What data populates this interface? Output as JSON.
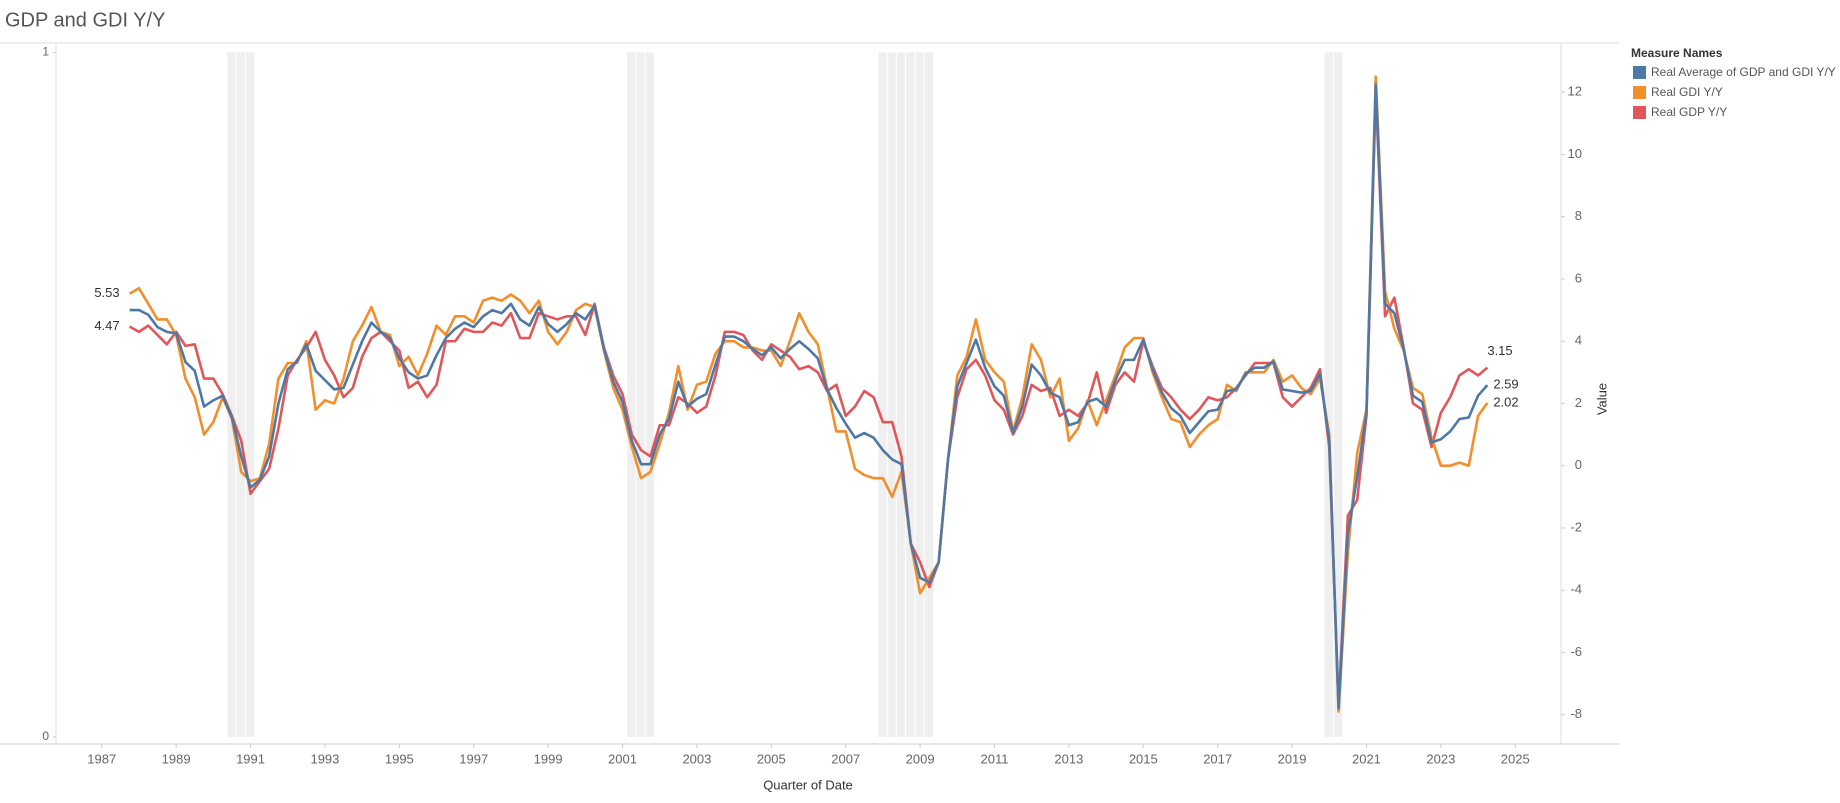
{
  "chart_data": {
    "type": "line",
    "title": "GDP and GDI Y/Y",
    "xlabel": "Quarter of Date",
    "y2label": "Value",
    "legend_title": "Measure Names",
    "legend": "right",
    "grid": false,
    "xlim": [
      1985.77,
      2026.23
    ],
    "xticks": [
      1987,
      1989,
      1991,
      1993,
      1995,
      1997,
      1999,
      2001,
      2003,
      2005,
      2007,
      2009,
      2011,
      2013,
      2015,
      2017,
      2019,
      2021,
      2023,
      2025
    ],
    "ylim": [
      -0.0103,
      1.0137
    ],
    "yticks": [
      0,
      1
    ],
    "y2lim": [
      -8.94,
      13.58
    ],
    "y2ticks": [
      -8,
      -6,
      -4,
      -2,
      0,
      2,
      4,
      6,
      8,
      10,
      12
    ],
    "recessions": {
      "color": "#efefef",
      "x": [
        1990.5,
        1990.75,
        1991.0,
        2001.25,
        2001.5,
        2001.75,
        2008.0,
        2008.25,
        2008.5,
        2008.75,
        2009.0,
        2009.25,
        2020.0,
        2020.25
      ],
      "values": [
        1,
        1,
        1,
        1,
        1,
        1,
        1,
        1,
        1,
        1,
        1,
        1,
        1,
        1
      ]
    },
    "x": [
      1987.75,
      1988,
      1988.25,
      1988.5,
      1988.75,
      1989,
      1989.25,
      1989.5,
      1989.75,
      1990,
      1990.25,
      1990.5,
      1990.75,
      1991,
      1991.25,
      1991.5,
      1991.75,
      1992,
      1992.25,
      1992.5,
      1992.75,
      1993,
      1993.25,
      1993.5,
      1993.75,
      1994,
      1994.25,
      1994.5,
      1994.75,
      1995,
      1995.25,
      1995.5,
      1995.75,
      1996,
      1996.25,
      1996.5,
      1996.75,
      1997,
      1997.25,
      1997.5,
      1997.75,
      1998,
      1998.25,
      1998.5,
      1998.75,
      1999,
      1999.25,
      1999.5,
      1999.75,
      2000,
      2000.25,
      2000.5,
      2000.75,
      2001,
      2001.25,
      2001.5,
      2001.75,
      2002,
      2002.25,
      2002.5,
      2002.75,
      2003,
      2003.25,
      2003.5,
      2003.75,
      2004,
      2004.25,
      2004.5,
      2004.75,
      2005,
      2005.25,
      2005.5,
      2005.75,
      2006,
      2006.25,
      2006.5,
      2006.75,
      2007,
      2007.25,
      2007.5,
      2007.75,
      2008,
      2008.25,
      2008.5,
      2008.75,
      2009,
      2009.25,
      2009.5,
      2009.75,
      2010,
      2010.25,
      2010.5,
      2010.75,
      2011,
      2011.25,
      2011.5,
      2011.75,
      2012,
      2012.25,
      2012.5,
      2012.75,
      2013,
      2013.25,
      2013.5,
      2013.75,
      2014,
      2014.25,
      2014.5,
      2014.75,
      2015,
      2015.25,
      2015.5,
      2015.75,
      2016,
      2016.25,
      2016.5,
      2016.75,
      2017,
      2017.25,
      2017.5,
      2017.75,
      2018,
      2018.25,
      2018.5,
      2018.75,
      2019,
      2019.25,
      2019.5,
      2019.75,
      2020,
      2020.25,
      2020.5,
      2020.75,
      2021,
      2021.25,
      2021.5,
      2021.75,
      2022,
      2022.25,
      2022.5,
      2022.75,
      2023,
      2023.25,
      2023.5,
      2023.75,
      2024,
      2024.25
    ],
    "series": [
      {
        "name": "Real Average of GDP and GDI Y/Y",
        "color": "#4e79a7",
        "axis": "y2",
        "values": [
          5.0,
          5.0,
          4.85,
          4.45,
          4.3,
          4.25,
          3.33,
          3.05,
          1.9,
          2.1,
          2.25,
          1.55,
          0.3,
          -0.7,
          -0.45,
          0.3,
          2.0,
          3.1,
          3.35,
          3.9,
          3.05,
          2.75,
          2.45,
          2.5,
          3.25,
          4.0,
          4.6,
          4.3,
          4.1,
          3.45,
          3.0,
          2.8,
          2.9,
          3.55,
          4.1,
          4.4,
          4.6,
          4.45,
          4.8,
          5.0,
          4.9,
          5.2,
          4.7,
          4.5,
          5.1,
          4.55,
          4.3,
          4.55,
          4.9,
          4.7,
          5.15,
          3.75,
          2.7,
          2.05,
          0.8,
          0.05,
          0.05,
          1.0,
          1.5,
          2.7,
          1.9,
          2.15,
          2.3,
          3.25,
          4.15,
          4.15,
          4.0,
          3.75,
          3.55,
          3.8,
          3.45,
          3.75,
          4.0,
          3.75,
          3.45,
          2.45,
          1.85,
          1.35,
          0.9,
          1.05,
          0.9,
          0.5,
          0.2,
          0.05,
          -2.5,
          -3.6,
          -3.75,
          -3.1,
          0.2,
          2.55,
          3.3,
          4.05,
          3.15,
          2.55,
          2.25,
          1.05,
          1.9,
          3.25,
          2.9,
          2.35,
          2.2,
          1.3,
          1.4,
          2.05,
          2.15,
          1.9,
          2.75,
          3.4,
          3.4,
          4.05,
          3.1,
          2.35,
          1.85,
          1.6,
          1.05,
          1.4,
          1.75,
          1.8,
          2.4,
          2.45,
          2.95,
          3.15,
          3.15,
          3.35,
          2.45,
          2.4,
          2.35,
          2.4,
          2.95,
          0.8,
          -7.8,
          -2.2,
          -0.35,
          1.7,
          12.25,
          5.2,
          4.9,
          3.75,
          2.25,
          2.05,
          0.75,
          0.85,
          1.1,
          1.5,
          1.55,
          2.25,
          2.59
        ]
      },
      {
        "name": "Real GDI Y/Y",
        "color": "#f28e2b",
        "axis": "y2",
        "values": [
          5.53,
          5.7,
          5.2,
          4.7,
          4.7,
          4.2,
          2.8,
          2.2,
          1.0,
          1.4,
          2.2,
          1.5,
          -0.2,
          -0.5,
          -0.4,
          0.7,
          2.8,
          3.3,
          3.3,
          4.0,
          1.8,
          2.1,
          2.0,
          2.8,
          4.0,
          4.5,
          5.1,
          4.3,
          4.2,
          3.2,
          3.5,
          2.9,
          3.6,
          4.5,
          4.2,
          4.8,
          4.8,
          4.6,
          5.3,
          5.4,
          5.3,
          5.5,
          5.3,
          4.9,
          5.3,
          4.3,
          3.9,
          4.3,
          5.0,
          5.2,
          5.1,
          3.7,
          2.5,
          1.8,
          0.6,
          -0.4,
          -0.2,
          0.7,
          1.7,
          3.2,
          1.8,
          2.6,
          2.7,
          3.6,
          4.0,
          4.0,
          3.8,
          3.8,
          3.7,
          3.7,
          3.2,
          4.0,
          4.9,
          4.3,
          3.9,
          2.5,
          1.1,
          1.1,
          -0.1,
          -0.3,
          -0.4,
          -0.4,
          -1.0,
          -0.2,
          -2.5,
          -4.1,
          -3.6,
          -3.1,
          0.2,
          2.9,
          3.5,
          4.7,
          3.4,
          3.0,
          2.7,
          1.1,
          2.2,
          3.9,
          3.4,
          2.2,
          2.8,
          0.8,
          1.2,
          2.1,
          1.3,
          2.1,
          2.9,
          3.8,
          4.1,
          4.1,
          3.0,
          2.2,
          1.5,
          1.4,
          0.6,
          1.0,
          1.3,
          1.5,
          2.6,
          2.4,
          3.0,
          3.0,
          3.0,
          3.4,
          2.7,
          2.9,
          2.5,
          2.3,
          2.8,
          1.0,
          -7.9,
          -2.8,
          0.4,
          1.8,
          12.5,
          5.6,
          4.4,
          3.7,
          2.5,
          2.3,
          0.9,
          0.0,
          0.0,
          0.1,
          0.0,
          1.6,
          2.02
        ]
      },
      {
        "name": "Real GDP Y/Y",
        "color": "#e15759",
        "axis": "y2",
        "values": [
          4.47,
          4.3,
          4.5,
          4.2,
          3.9,
          4.3,
          3.85,
          3.9,
          2.8,
          2.8,
          2.3,
          1.6,
          0.8,
          -0.9,
          -0.5,
          -0.1,
          1.2,
          2.9,
          3.4,
          3.8,
          4.3,
          3.4,
          2.9,
          2.2,
          2.5,
          3.5,
          4.1,
          4.3,
          4.0,
          3.7,
          2.5,
          2.7,
          2.2,
          2.6,
          4.0,
          4.0,
          4.4,
          4.3,
          4.3,
          4.6,
          4.5,
          4.9,
          4.1,
          4.1,
          4.9,
          4.8,
          4.7,
          4.8,
          4.8,
          4.2,
          5.2,
          3.8,
          2.9,
          2.3,
          1.0,
          0.5,
          0.3,
          1.3,
          1.3,
          2.2,
          2.0,
          1.7,
          1.9,
          2.9,
          4.3,
          4.3,
          4.2,
          3.7,
          3.4,
          3.9,
          3.7,
          3.5,
          3.1,
          3.2,
          3.0,
          2.4,
          2.6,
          1.6,
          1.9,
          2.4,
          2.2,
          1.4,
          1.4,
          0.3,
          -2.5,
          -3.1,
          -3.9,
          -3.1,
          0.2,
          2.2,
          3.1,
          3.4,
          2.9,
          2.1,
          1.8,
          1.0,
          1.6,
          2.6,
          2.4,
          2.5,
          1.6,
          1.8,
          1.6,
          2.0,
          3.0,
          1.7,
          2.6,
          3.0,
          2.7,
          4.0,
          3.2,
          2.5,
          2.2,
          1.8,
          1.5,
          1.8,
          2.2,
          2.1,
          2.2,
          2.5,
          2.9,
          3.3,
          3.3,
          3.3,
          2.2,
          1.9,
          2.2,
          2.5,
          3.1,
          0.6,
          -7.7,
          -1.6,
          -1.1,
          1.6,
          12.0,
          4.8,
          5.4,
          3.8,
          2.0,
          1.8,
          0.6,
          1.7,
          2.2,
          2.9,
          3.1,
          2.9,
          3.15
        ]
      }
    ]
  }
}
